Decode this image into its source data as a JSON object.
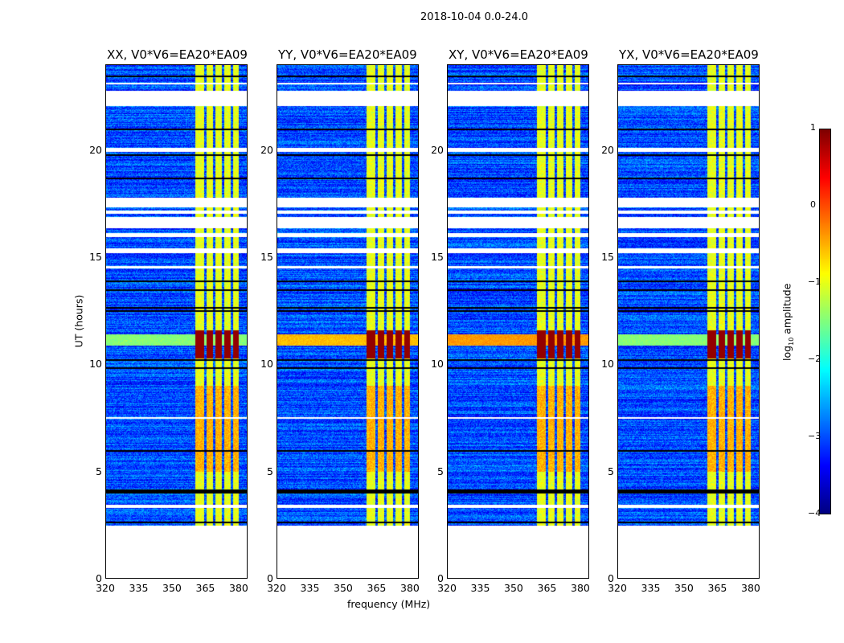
{
  "title": "2018-10-04 0.0-24.0",
  "chart_data": {
    "type": "heatmap",
    "title": "2018-10-04 0.0-24.0",
    "xlabel": "frequency (MHz)",
    "ylabel": "UT (hours)",
    "xlim": [
      320,
      384
    ],
    "ylim": [
      0,
      24
    ],
    "xticks": [
      "320",
      "335",
      "350",
      "365",
      "380"
    ],
    "xtick_values": [
      320,
      335,
      350,
      365,
      380
    ],
    "yticks": [
      "0",
      "5",
      "10",
      "15",
      "20"
    ],
    "ytick_values": [
      0,
      5,
      10,
      15,
      20
    ],
    "panels": [
      {
        "title": "XX, V0*V6=EA20*EA09",
        "broadband_event": 0.3
      },
      {
        "title": "YY, V0*V6=EA20*EA09",
        "broadband_event": 0.8
      },
      {
        "title": "XY, V0*V6=EA20*EA09",
        "broadband_event": 0.9
      },
      {
        "title": "YX, V0*V6=EA20*EA09",
        "broadband_event": 0.3
      }
    ],
    "background_log_amplitude": -3.0,
    "rfi_columns_mhz": [
      [
        360.5,
        364.5
      ],
      [
        365.5,
        368.5
      ],
      [
        369.5,
        372.5
      ],
      [
        373.5,
        376.5
      ],
      [
        377.5,
        380
      ]
    ],
    "rfi_log_amplitude": -1.0,
    "strong_event_hours": [
      10.3,
      11.6
    ],
    "strong_event_log_amplitude": 0.9,
    "blank_intervals_hours": [
      [
        0,
        2.45
      ],
      [
        3.3,
        3.45
      ],
      [
        7.45,
        7.55
      ],
      [
        14.5,
        14.6
      ],
      [
        15.2,
        15.45
      ],
      [
        15.95,
        16.15
      ],
      [
        16.4,
        16.9
      ],
      [
        17.05,
        17.2
      ],
      [
        17.35,
        17.8
      ],
      [
        19.95,
        20.15
      ],
      [
        22.1,
        22.8
      ],
      [
        23.1,
        23.2
      ]
    ],
    "dark_lines_hours": [
      2.6,
      4.0,
      4.1,
      5.95,
      9.85,
      10.2,
      12.5,
      12.65,
      13.5,
      13.9,
      18.7,
      19.8,
      21.0,
      23.5
    ],
    "colorbar": {
      "label": "log10 amplitude",
      "min": -4,
      "max": 1,
      "ticks": [
        "1",
        "0",
        "−1",
        "−2",
        "−3",
        "−4"
      ],
      "tick_values": [
        1,
        0,
        -1,
        -2,
        -3,
        -4
      ],
      "colormap": "jet"
    }
  }
}
